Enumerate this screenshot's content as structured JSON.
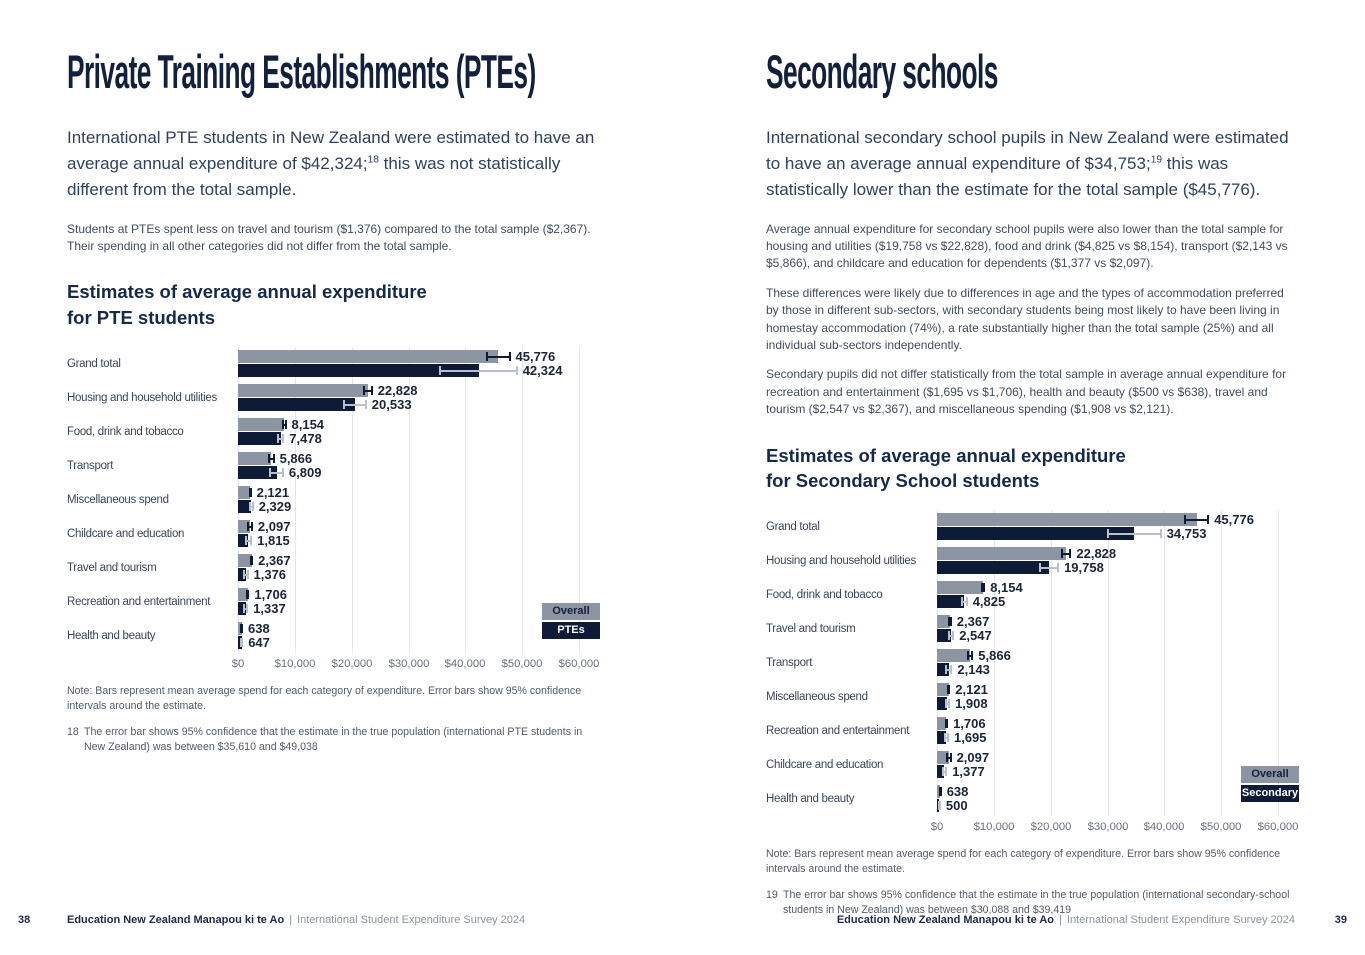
{
  "colors": {
    "title_navy": "#13203d",
    "bar_gray": "#8d94a2",
    "bar_navy": "#0d1b36",
    "gridline": "#e3e6ea",
    "body_text": "#3f4c60"
  },
  "pages": [
    {
      "page_number": "38",
      "title": "Private Training Establishments (PTEs)",
      "lead": {
        "pre": "International PTE students in New Zealand were estimated to have an average annual expenditure of $42,324;",
        "sup": "18",
        "post": " this was not statistically different from the total sample."
      },
      "paragraphs": [
        "Students at PTEs spent less on travel and tourism ($1,376) compared to the total sample ($2,367). Their spending in all other categories did not differ from the total sample."
      ],
      "note": "Note: Bars represent mean average spend for each category of expenditure. Error bars show 95% confidence intervals around the estimate.",
      "footnote": {
        "num": "18",
        "text": "The error bar shows 95% confidence that the estimate in the true population (international PTE students in New Zealand) was between $35,610 and $49,038"
      },
      "footer": {
        "brand": "Education New Zealand Manapou ki te Ao",
        "sep": "|",
        "survey": "International Student Expenditure Survey 2024"
      }
    },
    {
      "page_number": "39",
      "title": "Secondary schools",
      "lead": {
        "pre": "International secondary school pupils in New Zealand were estimated to have an average annual expenditure of $34,753;",
        "sup": "19",
        "post": " this was statistically lower than the estimate for the total sample ($45,776)."
      },
      "paragraphs": [
        "Average annual expenditure for secondary school pupils were also lower than the total sample for housing and utilities ($19,758 vs $22,828), food and drink ($4,825 vs $8,154), transport ($2,143 vs $5,866), and childcare and education for dependents ($1,377 vs $2,097).",
        "These differences were likely due to differences in age and the types of accommodation preferred by those in different sub-sectors, with secondary students being most likely to have been living in homestay accommodation (74%), a rate substantially higher than the total sample (25%) and all individual sub-sectors independently.",
        "Secondary pupils did not differ statistically from the total sample in average annual expenditure for recreation and entertainment ($1,695 vs $1,706), health and beauty ($500 vs $638), travel and tourism ($2,547 vs $2,367), and miscellaneous spending ($1,908 vs $2,121)."
      ],
      "note": "Note: Bars represent mean average spend for each category of expenditure. Error bars show 95% confidence intervals around the estimate.",
      "footnote": {
        "num": "19",
        "text": "The error bar shows 95% confidence that the estimate in the true population (international secondary-school students in New Zealand) was between $30,088 and $39,419"
      },
      "footer": {
        "brand": "Education New Zealand Manapou ki te Ao",
        "sep": "|",
        "survey": "International Student Expenditure Survey 2024"
      }
    }
  ],
  "chart_data": [
    {
      "type": "bar",
      "orientation": "horizontal",
      "title": "Estimates of average annual expenditure for PTE students",
      "title_lines": [
        "Estimates of average annual expenditure",
        "for PTE students"
      ],
      "categories": [
        "Grand total",
        "Housing and household utilities",
        "Food, drink and tobacco",
        "Transport",
        "Miscellaneous spend",
        "Childcare and education",
        "Travel and tourism",
        "Recreation and entertainment",
        "Health and beauty"
      ],
      "series": [
        {
          "name": "Overall",
          "color": "#8d94a2",
          "err_color": "#0d1b36",
          "label_color": "#13203d",
          "values": [
            45776,
            22828,
            8154,
            5866,
            2121,
            2097,
            2367,
            1706,
            638
          ],
          "ci": [
            2000,
            700,
            200,
            400,
            100,
            350,
            120,
            120,
            60
          ]
        },
        {
          "name": "PTEs",
          "color": "#0d1b36",
          "err_color": "#b9c0cc",
          "label_color": "#ffffff",
          "values": [
            42324,
            20533,
            7478,
            6809,
            2329,
            1815,
            1376,
            1337,
            647
          ],
          "ci": [
            6714,
            1950,
            500,
            1100,
            250,
            500,
            300,
            280,
            90
          ]
        }
      ],
      "xlim": [
        0,
        60000
      ],
      "ticks": [
        "$0",
        "$10,000",
        "$20,000",
        "$30,000",
        "$40,000",
        "$50,000",
        "$60,000"
      ],
      "grid": true,
      "legend_position": "bottom-right"
    },
    {
      "type": "bar",
      "orientation": "horizontal",
      "title": "Estimates of average annual expenditure for Secondary School students",
      "title_lines": [
        "Estimates of average annual expenditure",
        "for Secondary School students"
      ],
      "categories": [
        "Grand total",
        "Housing and household utilities",
        "Food, drink and tobacco",
        "Travel and tourism",
        "Transport",
        "Miscellaneous spend",
        "Recreation and entertainment",
        "Childcare and education",
        "Health and beauty"
      ],
      "series": [
        {
          "name": "Overall",
          "color": "#8d94a2",
          "err_color": "#0d1b36",
          "label_color": "#13203d",
          "values": [
            45776,
            22828,
            8154,
            2367,
            5866,
            2121,
            1706,
            2097,
            638
          ],
          "ci": [
            2000,
            700,
            200,
            120,
            400,
            100,
            120,
            350,
            60
          ]
        },
        {
          "name": "Secondary",
          "color": "#0d1b36",
          "err_color": "#b9c0cc",
          "label_color": "#ffffff",
          "values": [
            34753,
            19758,
            4825,
            2547,
            2143,
            1908,
            1695,
            1377,
            500
          ],
          "ci": [
            4666,
            1600,
            450,
            350,
            450,
            280,
            300,
            300,
            70
          ]
        }
      ],
      "xlim": [
        0,
        60000
      ],
      "ticks": [
        "$0",
        "$10,000",
        "$20,000",
        "$30,000",
        "$40,000",
        "$50,000",
        "$60,000"
      ],
      "grid": true,
      "legend_position": "bottom-right"
    }
  ]
}
